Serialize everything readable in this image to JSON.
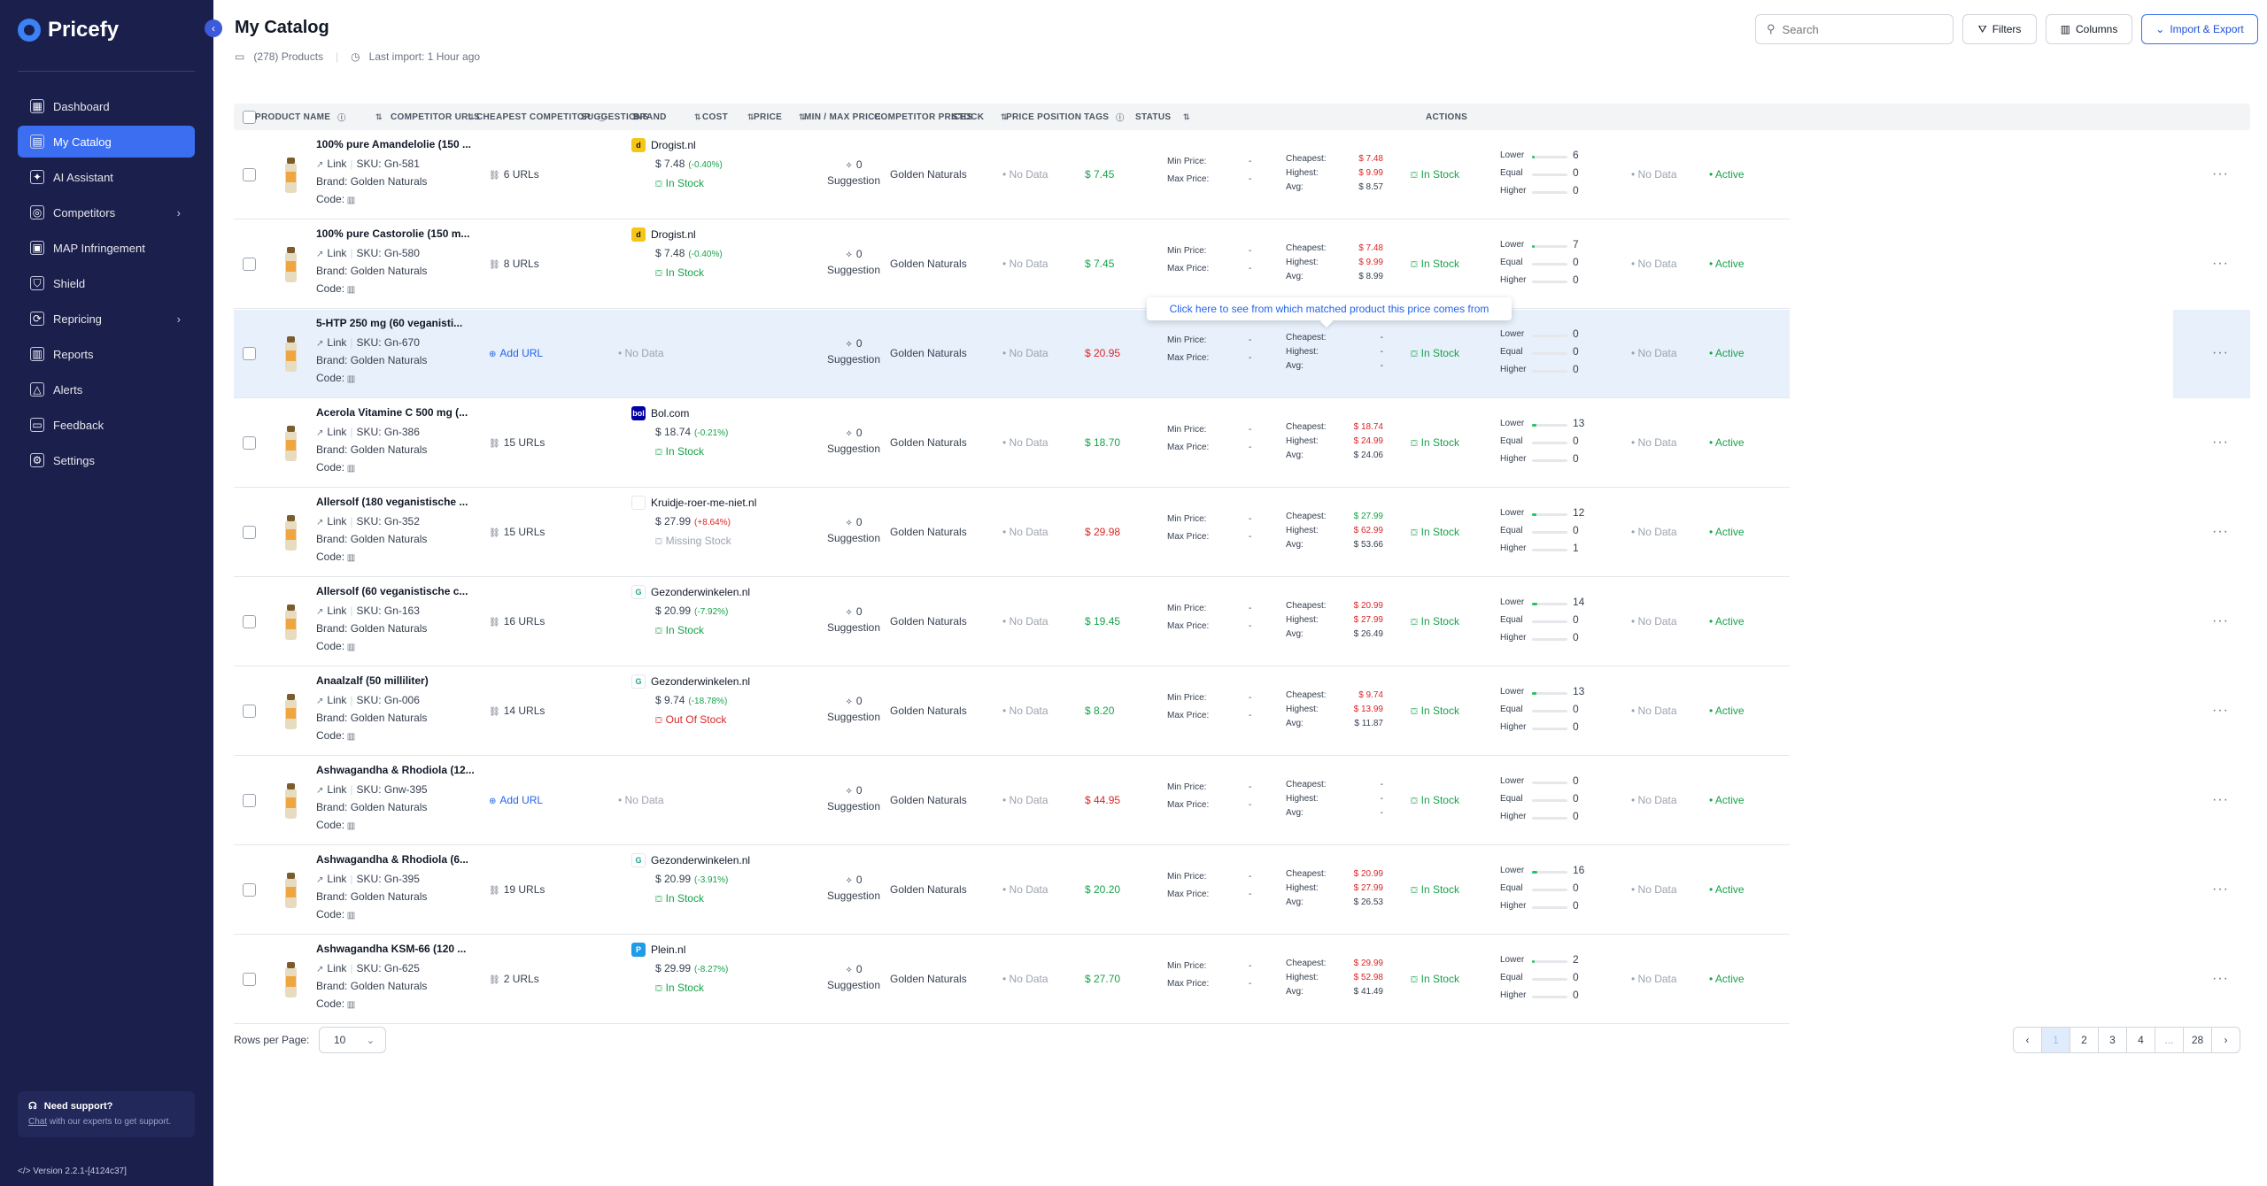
{
  "app": {
    "name": "Pricefy"
  },
  "sidebar": {
    "items": [
      {
        "label": "Dashboard",
        "icon": "dashboard-icon",
        "glyph": "▦"
      },
      {
        "label": "My Catalog",
        "icon": "catalog-icon",
        "glyph": "▤",
        "active": true
      },
      {
        "label": "AI Assistant",
        "icon": "ai-assistant-icon",
        "glyph": "✦"
      },
      {
        "label": "Competitors",
        "icon": "competitors-icon",
        "glyph": "◎",
        "chevron": true
      },
      {
        "label": "MAP Infringement",
        "icon": "map-infringement-icon",
        "glyph": "▣"
      },
      {
        "label": "Shield",
        "icon": "shield-icon",
        "glyph": "⛉"
      },
      {
        "label": "Repricing",
        "icon": "repricing-icon",
        "glyph": "⟳",
        "chevron": true
      },
      {
        "label": "Reports",
        "icon": "reports-icon",
        "glyph": "▥"
      },
      {
        "label": "Alerts",
        "icon": "alerts-icon",
        "glyph": "△"
      },
      {
        "label": "Feedback",
        "icon": "feedback-icon",
        "glyph": "▭"
      },
      {
        "label": "Settings",
        "icon": "settings-icon",
        "glyph": "⚙"
      }
    ],
    "support_title": "Need support?",
    "support_link": "Chat",
    "support_rest": " with our experts to get support.",
    "version": "Version 2.2.1-[4124c37]"
  },
  "header": {
    "title": "My Catalog",
    "products": "(278) Products",
    "last_import": "Last import: 1 Hour ago",
    "search_placeholder": "Search",
    "filters": "Filters",
    "columns": "Columns",
    "import_export": "Import & Export"
  },
  "table": {
    "columns": [
      "PRODUCT NAME",
      "COMPETITOR URLS",
      "CHEAPEST COMPETITOR",
      "SUGGESTIONS",
      "BRAND",
      "COST",
      "PRICE",
      "MIN / MAX PRICE",
      "COMPETITOR PRICES",
      "STOCK",
      "PRICE POSITION",
      "TAGS",
      "STATUS",
      "ACTIONS"
    ],
    "labels": {
      "link": "Link",
      "brand_prefix": "Brand: ",
      "code": "Code:",
      "suggestion": "Suggestion",
      "min_price": "Min Price:",
      "max_price": "Max Price:",
      "cheapest": "Cheapest:",
      "highest": "Highest:",
      "avg": "Avg:",
      "lower": "Lower",
      "equal": "Equal",
      "higher": "Higher",
      "no_data": "No Data",
      "add_url": "Add URL"
    },
    "rows": [
      {
        "name": "100% pure Amandelolie (150 ...",
        "sku": "SKU: Gn-581",
        "brand": "Golden Naturals",
        "urls": "6 URLs",
        "comp": {
          "name": "Drogist.nl",
          "logo": "d",
          "logo_bg": "#f5c518",
          "logo_fg": "#111",
          "price": "$ 7.48",
          "pct": "(-0.40%)",
          "pct_color": "green",
          "stock": "In Stock",
          "stock_color": "green"
        },
        "suggestions": "0",
        "cost": "No Data",
        "price": "$ 7.45",
        "price_color": "green",
        "min": "-",
        "max": "-",
        "cheapest": "$ 7.48",
        "cheapest_color": "red",
        "highest": "$ 9.99",
        "highest_color": "red",
        "avg": "$ 8.57",
        "stock": "In Stock",
        "lower": "6",
        "equal": "0",
        "higher": "0",
        "lower_frac": 0.06,
        "tags": "No Data",
        "status": "Active"
      },
      {
        "name": "100% pure Castorolie (150 m...",
        "sku": "SKU: Gn-580",
        "brand": "Golden Naturals",
        "urls": "8 URLs",
        "comp": {
          "name": "Drogist.nl",
          "logo": "d",
          "logo_bg": "#f5c518",
          "logo_fg": "#111",
          "price": "$ 7.48",
          "pct": "(-0.40%)",
          "pct_color": "green",
          "stock": "In Stock",
          "stock_color": "green"
        },
        "suggestions": "0",
        "cost": "No Data",
        "price": "$ 7.45",
        "price_color": "green",
        "min": "-",
        "max": "-",
        "cheapest": "$ 7.48",
        "cheapest_color": "red",
        "highest": "$ 9.99",
        "highest_color": "red",
        "avg": "$ 8.99",
        "stock": "In Stock",
        "lower": "7",
        "equal": "0",
        "higher": "0",
        "lower_frac": 0.07,
        "tags": "No Data",
        "status": "Active"
      },
      {
        "name": "5-HTP 250 mg (60 veganisti...",
        "sku": "SKU: Gn-670",
        "brand": "Golden Naturals",
        "urls": "",
        "add_url": true,
        "comp": null,
        "suggestions": "0",
        "cost": "No Data",
        "price": "$ 20.95",
        "price_color": "red",
        "min": "-",
        "max": "-",
        "cheapest": "-",
        "cheapest_color": "dark",
        "highest": "-",
        "highest_color": "dark",
        "avg": "-",
        "stock": "In Stock",
        "lower": "0",
        "equal": "0",
        "higher": "0",
        "lower_frac": 0,
        "tags": "No Data",
        "status": "Active",
        "highlight": true
      },
      {
        "name": "Acerola Vitamine C 500 mg (...",
        "sku": "SKU: Gn-386",
        "brand": "Golden Naturals",
        "urls": "15 URLs",
        "comp": {
          "name": "Bol.com",
          "logo": "bol",
          "logo_bg": "#0000a4",
          "logo_fg": "#fff",
          "price": "$ 18.74",
          "pct": "(-0.21%)",
          "pct_color": "green",
          "stock": "In Stock",
          "stock_color": "green"
        },
        "suggestions": "0",
        "cost": "No Data",
        "price": "$ 18.70",
        "price_color": "green",
        "min": "-",
        "max": "-",
        "cheapest": "$ 18.74",
        "cheapest_color": "red",
        "highest": "$ 24.99",
        "highest_color": "red",
        "avg": "$ 24.06",
        "stock": "In Stock",
        "lower": "13",
        "equal": "0",
        "higher": "0",
        "lower_frac": 0.13,
        "tags": "No Data",
        "status": "Active"
      },
      {
        "name": "Allersolf (180 veganistische ...",
        "sku": "SKU: Gn-352",
        "brand": "Golden Naturals",
        "urls": "15 URLs",
        "comp": {
          "name": "Kruidje-roer-me-niet.nl",
          "logo": "",
          "logo_bg": "#ffffff",
          "logo_fg": "#999",
          "price": "$ 27.99",
          "pct": "(+8.64%)",
          "pct_color": "red",
          "stock": "Missing Stock",
          "stock_color": "gray"
        },
        "suggestions": "0",
        "cost": "No Data",
        "price": "$ 29.98",
        "price_color": "red",
        "min": "-",
        "max": "-",
        "cheapest": "$ 27.99",
        "cheapest_color": "green",
        "highest": "$ 62.99",
        "highest_color": "red",
        "avg": "$ 53.66",
        "stock": "In Stock",
        "lower": "12",
        "equal": "0",
        "higher": "1",
        "lower_frac": 0.12,
        "tags": "No Data",
        "status": "Active"
      },
      {
        "name": "Allersolf (60 veganistische c...",
        "sku": "SKU: Gn-163",
        "brand": "Golden Naturals",
        "urls": "16 URLs",
        "comp": {
          "name": "Gezonderwinkelen.nl",
          "logo": "G",
          "logo_bg": "#ffffff",
          "logo_fg": "#22a38a",
          "price": "$ 20.99",
          "pct": "(-7.92%)",
          "pct_color": "green",
          "stock": "In Stock",
          "stock_color": "green"
        },
        "suggestions": "0",
        "cost": "No Data",
        "price": "$ 19.45",
        "price_color": "green",
        "min": "-",
        "max": "-",
        "cheapest": "$ 20.99",
        "cheapest_color": "red",
        "highest": "$ 27.99",
        "highest_color": "red",
        "avg": "$ 26.49",
        "stock": "In Stock",
        "lower": "14",
        "equal": "0",
        "higher": "0",
        "lower_frac": 0.14,
        "tags": "No Data",
        "status": "Active"
      },
      {
        "name": "Anaalzalf (50 milliliter)",
        "sku": "SKU: Gn-006",
        "brand": "Golden Naturals",
        "urls": "14 URLs",
        "comp": {
          "name": "Gezonderwinkelen.nl",
          "logo": "G",
          "logo_bg": "#ffffff",
          "logo_fg": "#22a38a",
          "price": "$ 9.74",
          "pct": "(-18.78%)",
          "pct_color": "green",
          "stock": "Out Of Stock",
          "stock_color": "red"
        },
        "suggestions": "0",
        "cost": "No Data",
        "price": "$ 8.20",
        "price_color": "green",
        "min": "-",
        "max": "-",
        "cheapest": "$ 9.74",
        "cheapest_color": "red",
        "highest": "$ 13.99",
        "highest_color": "red",
        "avg": "$ 11.87",
        "stock": "In Stock",
        "lower": "13",
        "equal": "0",
        "higher": "0",
        "lower_frac": 0.13,
        "tags": "No Data",
        "status": "Active"
      },
      {
        "name": "Ashwagandha & Rhodiola (12...",
        "sku": "SKU: Gnw-395",
        "brand": "Golden Naturals",
        "urls": "",
        "add_url": true,
        "comp": null,
        "suggestions": "0",
        "cost": "No Data",
        "price": "$ 44.95",
        "price_color": "red",
        "min": "-",
        "max": "-",
        "cheapest": "-",
        "cheapest_color": "dark",
        "highest": "-",
        "highest_color": "dark",
        "avg": "-",
        "stock": "In Stock",
        "lower": "0",
        "equal": "0",
        "higher": "0",
        "lower_frac": 0,
        "tags": "No Data",
        "status": "Active"
      },
      {
        "name": "Ashwagandha & Rhodiola (6...",
        "sku": "SKU: Gn-395",
        "brand": "Golden Naturals",
        "urls": "19 URLs",
        "comp": {
          "name": "Gezonderwinkelen.nl",
          "logo": "G",
          "logo_bg": "#ffffff",
          "logo_fg": "#22a38a",
          "price": "$ 20.99",
          "pct": "(-3.91%)",
          "pct_color": "green",
          "stock": "In Stock",
          "stock_color": "green"
        },
        "suggestions": "0",
        "cost": "No Data",
        "price": "$ 20.20",
        "price_color": "green",
        "min": "-",
        "max": "-",
        "cheapest": "$ 20.99",
        "cheapest_color": "red",
        "highest": "$ 27.99",
        "highest_color": "red",
        "avg": "$ 26.53",
        "stock": "In Stock",
        "lower": "16",
        "equal": "0",
        "higher": "0",
        "lower_frac": 0.16,
        "tags": "No Data",
        "status": "Active"
      },
      {
        "name": "Ashwagandha KSM-66 (120 ...",
        "sku": "SKU: Gn-625",
        "brand": "Golden Naturals",
        "urls": "2 URLs",
        "comp": {
          "name": "Plein.nl",
          "logo": "P",
          "logo_bg": "#1e9be9",
          "logo_fg": "#fff",
          "price": "$ 29.99",
          "pct": "(-8.27%)",
          "pct_color": "green",
          "stock": "In Stock",
          "stock_color": "green"
        },
        "suggestions": "0",
        "cost": "No Data",
        "price": "$ 27.70",
        "price_color": "green",
        "min": "-",
        "max": "-",
        "cheapest": "$ 29.99",
        "cheapest_color": "red",
        "highest": "$ 52.98",
        "highest_color": "red",
        "avg": "$ 41.49",
        "stock": "In Stock",
        "lower": "2",
        "equal": "0",
        "higher": "0",
        "lower_frac": 0.02,
        "tags": "No Data",
        "status": "Active"
      }
    ],
    "tooltip": "Click here to see from which matched product this price comes from"
  },
  "footer": {
    "rows_per_page_label": "Rows per Page:",
    "rows_per_page": "10",
    "pages": [
      "1",
      "2",
      "3",
      "4",
      "...",
      "28"
    ],
    "current_page": "1"
  }
}
